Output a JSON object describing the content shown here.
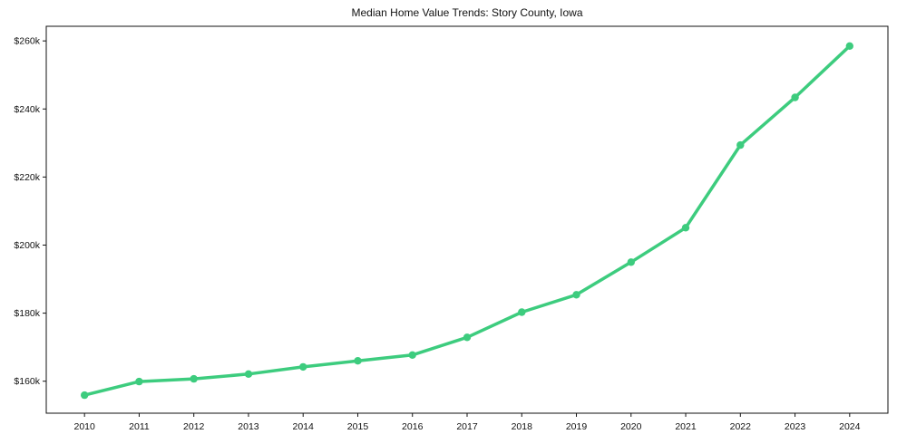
{
  "chart_data": {
    "type": "line",
    "title": "Median Home Value Trends: Story County, Iowa",
    "xlabel": "",
    "ylabel": "",
    "categories": [
      2010,
      2011,
      2012,
      2013,
      2014,
      2015,
      2016,
      2017,
      2018,
      2019,
      2020,
      2021,
      2022,
      2023,
      2024
    ],
    "x_tick_labels": [
      "2010",
      "2011",
      "2012",
      "2013",
      "2014",
      "2015",
      "2016",
      "2017",
      "2018",
      "2019",
      "2020",
      "2021",
      "2022",
      "2023",
      "2024"
    ],
    "series": [
      {
        "name": "Median Home Value",
        "values": [
          155900,
          159900,
          160700,
          162100,
          164200,
          166000,
          167700,
          172900,
          180300,
          185400,
          195000,
          205100,
          229400,
          243400,
          258500
        ]
      }
    ],
    "y_ticks": [
      {
        "value": 160000,
        "label": "$160k"
      },
      {
        "value": 180000,
        "label": "$180k"
      },
      {
        "value": 200000,
        "label": "$200k"
      },
      {
        "value": 220000,
        "label": "$220k"
      },
      {
        "value": 240000,
        "label": "$240k"
      },
      {
        "value": 260000,
        "label": "$260k"
      }
    ],
    "ylim": [
      150600,
      264300
    ],
    "xlim": [
      2009.3,
      2024.7
    ],
    "line_color": "#3dcc7e",
    "axis_color": "#111111",
    "grid": false,
    "legend_position": "none"
  }
}
